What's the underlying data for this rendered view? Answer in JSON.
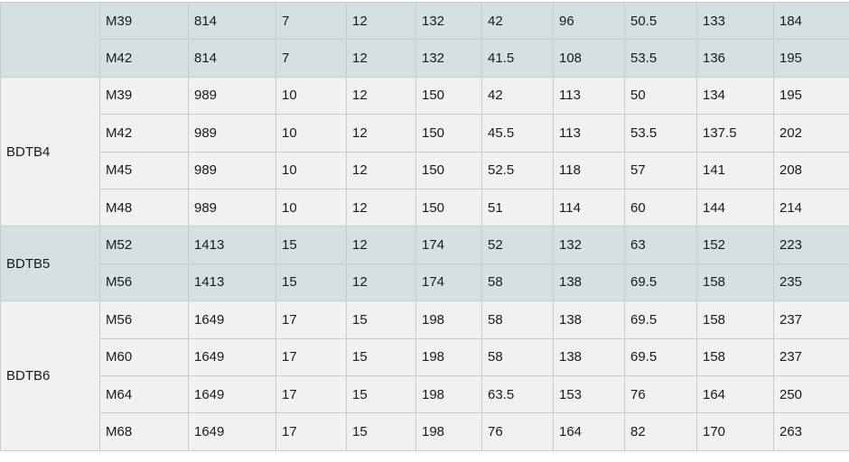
{
  "table": {
    "colors": {
      "row_blue": "#d5e0e3",
      "row_gray": "#f1f1f1",
      "border": "#cbcbcb",
      "text": "#1a1a1a",
      "page_background": "#ffffff"
    },
    "groups": [
      {
        "label": "",
        "tone": "blue",
        "rows": [
          {
            "size": "M39",
            "values": [
              "814",
              "7",
              "12",
              "132",
              "42",
              "96",
              "50.5",
              "133",
              "184"
            ]
          },
          {
            "size": "M42",
            "values": [
              "814",
              "7",
              "12",
              "132",
              "41.5",
              "108",
              "53.5",
              "136",
              "195"
            ]
          }
        ]
      },
      {
        "label": "BDTB4",
        "tone": "gray",
        "rows": [
          {
            "size": "M39",
            "values": [
              "989",
              "10",
              "12",
              "150",
              "42",
              "113",
              "50",
              "134",
              "195"
            ]
          },
          {
            "size": "M42",
            "values": [
              "989",
              "10",
              "12",
              "150",
              "45.5",
              "113",
              "53.5",
              "137.5",
              "202"
            ]
          },
          {
            "size": "M45",
            "values": [
              "989",
              "10",
              "12",
              "150",
              "52.5",
              "118",
              "57",
              "141",
              "208"
            ]
          },
          {
            "size": "M48",
            "values": [
              "989",
              "10",
              "12",
              "150",
              "51",
              "114",
              "60",
              "144",
              "214"
            ]
          }
        ]
      },
      {
        "label": "BDTB5",
        "tone": "blue",
        "rows": [
          {
            "size": "M52",
            "values": [
              "1413",
              "15",
              "12",
              "174",
              "52",
              "132",
              "63",
              "152",
              "223"
            ]
          },
          {
            "size": "M56",
            "values": [
              "1413",
              "15",
              "12",
              "174",
              "58",
              "138",
              "69.5",
              "158",
              "235"
            ]
          }
        ]
      },
      {
        "label": "BDTB6",
        "tone": "gray",
        "rows": [
          {
            "size": "M56",
            "values": [
              "1649",
              "17",
              "15",
              "198",
              "58",
              "138",
              "69.5",
              "158",
              "237"
            ]
          },
          {
            "size": "M60",
            "values": [
              "1649",
              "17",
              "15",
              "198",
              "58",
              "138",
              "69.5",
              "158",
              "237"
            ]
          },
          {
            "size": "M64",
            "values": [
              "1649",
              "17",
              "15",
              "198",
              "63.5",
              "153",
              "76",
              "164",
              "250"
            ]
          },
          {
            "size": "M68",
            "values": [
              "1649",
              "17",
              "15",
              "198",
              "76",
              "164",
              "82",
              "170",
              "263"
            ]
          }
        ]
      }
    ]
  }
}
